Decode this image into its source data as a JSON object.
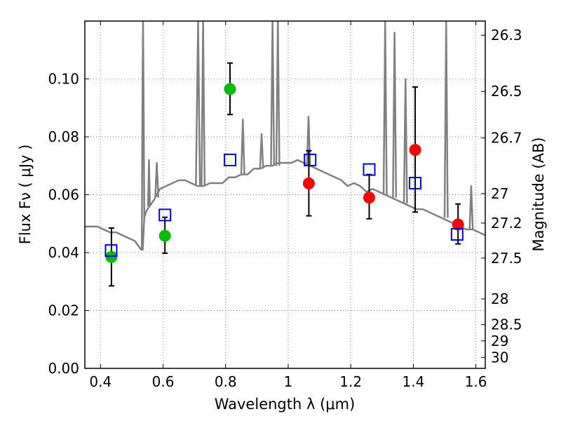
{
  "chart_data": {
    "type": "scatter",
    "title": "",
    "xlabel": "Wavelength  λ (μm)",
    "ylabel": "Flux  Fν  ( μJy )",
    "y2label": "Magnitude (AB)",
    "xlim": [
      0.35,
      1.63
    ],
    "ylim": [
      0.0,
      0.12
    ],
    "grid": true,
    "x_ticks": [
      0.4,
      0.6,
      0.8,
      1.0,
      1.2,
      1.4,
      1.6
    ],
    "x_tick_labels": [
      "0.4",
      "0.6",
      "0.8",
      "1",
      "1.2",
      "1.4",
      "1.6"
    ],
    "y_ticks": [
      0.0,
      0.02,
      0.04,
      0.06,
      0.08,
      0.1
    ],
    "y_tick_labels": [
      "0.00",
      "0.02",
      "0.04",
      "0.06",
      "0.08",
      "0.10"
    ],
    "y2_ticks": [
      {
        "label": "26.3",
        "flux": 0.1151
      },
      {
        "label": "26.5",
        "flux": 0.0957
      },
      {
        "label": "26.7",
        "flux": 0.0796
      },
      {
        "label": "27",
        "flux": 0.0604
      },
      {
        "label": "27.2",
        "flux": 0.0502
      },
      {
        "label": "27.5",
        "flux": 0.0381
      },
      {
        "label": "28",
        "flux": 0.024
      },
      {
        "label": "28.5",
        "flux": 0.0151
      },
      {
        "label": "29",
        "flux": 0.0095
      },
      {
        "label": "30",
        "flux": 0.0038
      }
    ],
    "colors": {
      "template": "#808080",
      "green": "#00bb00",
      "red": "#ff0000",
      "model": "#0000dd",
      "errorbar": "#000000",
      "grid": "#888888"
    },
    "series": [
      {
        "type": "line",
        "color": "#808080",
        "x": [
          0.35,
          0.37,
          0.39,
          0.41,
          0.43,
          0.45,
          0.47,
          0.49,
          0.51,
          0.53,
          0.535,
          0.54,
          0.545,
          0.55,
          0.57,
          0.59,
          0.61,
          0.63,
          0.65,
          0.67,
          0.69,
          0.71,
          0.73,
          0.75,
          0.77,
          0.79,
          0.81,
          0.83,
          0.85,
          0.87,
          0.89,
          0.91,
          0.93,
          0.95,
          0.97,
          0.99,
          1.01,
          1.03,
          1.05,
          1.07,
          1.09,
          1.11,
          1.13,
          1.15,
          1.17,
          1.19,
          1.21,
          1.23,
          1.25,
          1.27,
          1.29,
          1.31,
          1.33,
          1.35,
          1.37,
          1.39,
          1.41,
          1.43,
          1.45,
          1.47,
          1.49,
          1.51,
          1.53,
          1.55,
          1.57,
          1.59,
          1.61,
          1.63
        ],
        "y": [
          0.049,
          0.049,
          0.049,
          0.048,
          0.047,
          0.047,
          0.046,
          0.045,
          0.044,
          0.041,
          0.041,
          0.052,
          0.054,
          0.055,
          0.058,
          0.062,
          0.063,
          0.064,
          0.065,
          0.065,
          0.064,
          0.063,
          0.063,
          0.064,
          0.064,
          0.064,
          0.066,
          0.066,
          0.067,
          0.067,
          0.069,
          0.069,
          0.07,
          0.07,
          0.071,
          0.071,
          0.071,
          0.072,
          0.071,
          0.07,
          0.069,
          0.068,
          0.067,
          0.066,
          0.065,
          0.063,
          0.064,
          0.063,
          0.061,
          0.062,
          0.061,
          0.06,
          0.059,
          0.058,
          0.057,
          0.056,
          0.055,
          0.055,
          0.054,
          0.053,
          0.052,
          0.051,
          0.05,
          0.049,
          0.048,
          0.048,
          0.047,
          0.046
        ]
      },
      {
        "type": "line",
        "color": "#808080",
        "x": [
          0.532,
          0.534,
          0.536,
          0.538,
          0.54
        ],
        "y": [
          0.041,
          0.09,
          0.12,
          0.09,
          0.052
        ]
      },
      {
        "type": "line",
        "color": "#808080",
        "x": [
          0.552,
          0.555,
          0.558
        ],
        "y": [
          0.056,
          0.072,
          0.056
        ]
      },
      {
        "type": "line",
        "color": "#808080",
        "x": [
          0.575,
          0.58,
          0.585
        ],
        "y": [
          0.059,
          0.071,
          0.059
        ]
      },
      {
        "type": "line",
        "color": "#808080",
        "x": [
          0.705,
          0.712,
          0.718
        ],
        "y": [
          0.063,
          0.12,
          0.063
        ]
      },
      {
        "type": "line",
        "color": "#808080",
        "x": [
          0.723,
          0.728,
          0.733
        ],
        "y": [
          0.063,
          0.12,
          0.063
        ]
      },
      {
        "type": "line",
        "color": "#808080",
        "x": [
          0.85,
          0.855,
          0.86
        ],
        "y": [
          0.067,
          0.086,
          0.067
        ]
      },
      {
        "type": "line",
        "color": "#808080",
        "x": [
          0.91,
          0.915,
          0.92
        ],
        "y": [
          0.069,
          0.081,
          0.069
        ]
      },
      {
        "type": "line",
        "color": "#808080",
        "x": [
          0.945,
          0.95,
          0.955
        ],
        "y": [
          0.07,
          0.12,
          0.07
        ]
      },
      {
        "type": "line",
        "color": "#808080",
        "x": [
          0.962,
          0.967,
          0.972
        ],
        "y": [
          0.07,
          0.12,
          0.07
        ]
      },
      {
        "type": "line",
        "color": "#808080",
        "x": [
          1.06,
          1.065,
          1.07
        ],
        "y": [
          0.07,
          0.087,
          0.07
        ]
      },
      {
        "type": "line",
        "color": "#808080",
        "x": [
          1.305,
          1.31,
          1.315
        ],
        "y": [
          0.06,
          0.12,
          0.06
        ]
      },
      {
        "type": "line",
        "color": "#808080",
        "x": [
          1.335,
          1.34,
          1.345
        ],
        "y": [
          0.059,
          0.116,
          0.059
        ]
      },
      {
        "type": "line",
        "color": "#808080",
        "x": [
          1.37,
          1.375,
          1.38
        ],
        "y": [
          0.057,
          0.1,
          0.057
        ]
      },
      {
        "type": "line",
        "color": "#808080",
        "x": [
          1.5,
          1.505,
          1.51
        ],
        "y": [
          0.052,
          0.12,
          0.052
        ]
      },
      {
        "type": "line",
        "color": "#808080",
        "x": [
          1.58,
          1.585,
          1.59
        ],
        "y": [
          0.048,
          0.063,
          0.048
        ]
      },
      {
        "type": "scatter",
        "marker": "circle",
        "color": "#00bb00",
        "points": [
          {
            "x": 0.435,
            "y": 0.0385,
            "yerr_low": 0.0285,
            "yerr_high": 0.0485
          },
          {
            "x": 0.606,
            "y": 0.0458,
            "yerr_low": 0.0398,
            "yerr_high": 0.0522
          },
          {
            "x": 0.814,
            "y": 0.0965,
            "yerr_low": 0.0877,
            "yerr_high": 0.1055
          }
        ]
      },
      {
        "type": "scatter",
        "marker": "circle",
        "color": "#ff0000",
        "points": [
          {
            "x": 1.066,
            "y": 0.0639,
            "yerr_low": 0.0527,
            "yerr_high": 0.0752
          },
          {
            "x": 1.259,
            "y": 0.059,
            "yerr_low": 0.0517,
            "yerr_high": 0.067
          },
          {
            "x": 1.406,
            "y": 0.0755,
            "yerr_low": 0.054,
            "yerr_high": 0.0972
          },
          {
            "x": 1.543,
            "y": 0.0497,
            "yerr_low": 0.043,
            "yerr_high": 0.0568
          }
        ]
      },
      {
        "type": "scatter",
        "marker": "square-open",
        "color": "#0000dd",
        "points": [
          {
            "x": 0.434,
            "y": 0.0407
          },
          {
            "x": 0.606,
            "y": 0.053
          },
          {
            "x": 0.814,
            "y": 0.072
          },
          {
            "x": 1.07,
            "y": 0.072
          },
          {
            "x": 1.259,
            "y": 0.0687
          },
          {
            "x": 1.406,
            "y": 0.064
          },
          {
            "x": 1.54,
            "y": 0.0463
          }
        ]
      }
    ]
  }
}
